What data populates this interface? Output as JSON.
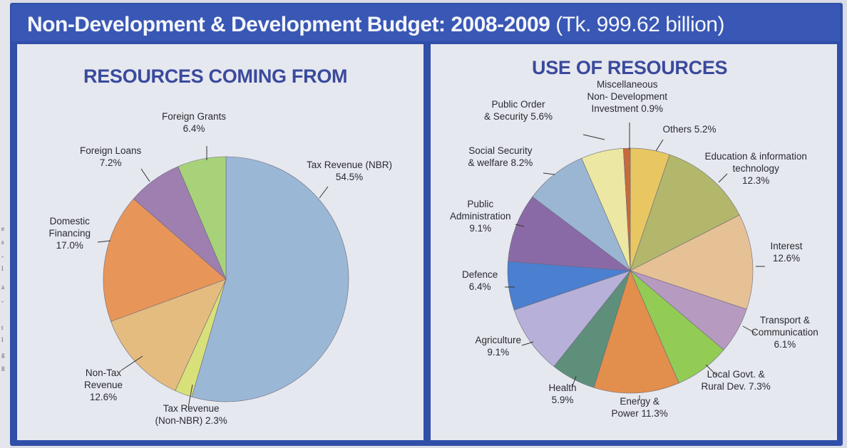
{
  "page": {
    "title_main": "Non-Development & Development Budget: 2008-2009",
    "title_sub": "(Tk. 999.62 billion)",
    "edge_fragments": [
      "e",
      "s",
      "-",
      "l",
      "a",
      "-",
      "t",
      "l",
      "g",
      "8"
    ]
  },
  "chart_data": [
    {
      "type": "pie",
      "title": "RESOURCES COMING FROM",
      "unit": "%",
      "start_angle_deg": 0,
      "direction": "clockwise",
      "slices": [
        {
          "label": "Tax Revenue (NBR)",
          "value": 54.5,
          "color": "#9bb7d6"
        },
        {
          "label": "Tax Revenue (Non-NBR)",
          "value": 2.3,
          "color": "#d8e07a"
        },
        {
          "label": "Non-Tax Revenue",
          "value": 12.6,
          "color": "#e5bc80"
        },
        {
          "label": "Domestic Financing",
          "value": 17.0,
          "color": "#e8955a"
        },
        {
          "label": "Foreign Loans",
          "value": 7.2,
          "color": "#9e7fb0"
        },
        {
          "label": "Foreign Grants",
          "value": 6.4,
          "color": "#a7d27a"
        }
      ],
      "labels": [
        {
          "lines": [
            "Tax Revenue (NBR)",
            "54.5%"
          ]
        },
        {
          "lines": [
            "Tax Revenue",
            "(Non-NBR) 2.3%"
          ]
        },
        {
          "lines": [
            "Non-Tax",
            "Revenue",
            "12.6%"
          ]
        },
        {
          "lines": [
            "Domestic",
            "Financing",
            "17.0%"
          ]
        },
        {
          "lines": [
            "Foreign Loans",
            "7.2%"
          ]
        },
        {
          "lines": [
            "Foreign Grants",
            "6.4%"
          ]
        }
      ]
    },
    {
      "type": "pie",
      "title": "USE OF RESOURCES",
      "unit": "%",
      "start_angle_deg": 0,
      "direction": "clockwise",
      "slices": [
        {
          "label": "Others",
          "value": 5.2,
          "color": "#e8c763"
        },
        {
          "label": "Education & information technology",
          "value": 12.3,
          "color": "#b3b76c"
        },
        {
          "label": "Interest",
          "value": 12.6,
          "color": "#e6c196"
        },
        {
          "label": "Transport & Communication",
          "value": 6.1,
          "color": "#b69ac0"
        },
        {
          "label": "Local Govt. & Rural Dev.",
          "value": 7.3,
          "color": "#93cc55"
        },
        {
          "label": "Energy & Power",
          "value": 11.3,
          "color": "#e28e4c"
        },
        {
          "label": "Health",
          "value": 5.9,
          "color": "#5e8f7a"
        },
        {
          "label": "Agriculture",
          "value": 9.1,
          "color": "#b7b0d8"
        },
        {
          "label": "Defence",
          "value": 6.4,
          "color": "#4b7fd0"
        },
        {
          "label": "Public Administration",
          "value": 9.1,
          "color": "#8a6aa6"
        },
        {
          "label": "Social Security & welfare",
          "value": 8.2,
          "color": "#9bb6d3"
        },
        {
          "label": "Public Order & Security",
          "value": 5.6,
          "color": "#ece7a2"
        },
        {
          "label": "Miscellaneous Non- Development Investment",
          "value": 0.9,
          "color": "#c76a3c"
        }
      ],
      "labels": [
        {
          "lines": [
            "Others 5.2%"
          ]
        },
        {
          "lines": [
            "Education & information",
            "technology",
            "12.3%"
          ]
        },
        {
          "lines": [
            "Interest",
            "12.6%"
          ]
        },
        {
          "lines": [
            "Transport &",
            "Communication",
            "6.1%"
          ]
        },
        {
          "lines": [
            "Local Govt. &",
            "Rural Dev. 7.3%"
          ]
        },
        {
          "lines": [
            "Energy &",
            "Power 11.3%"
          ]
        },
        {
          "lines": [
            "Health",
            "5.9%"
          ]
        },
        {
          "lines": [
            "Agriculture",
            "9.1%"
          ]
        },
        {
          "lines": [
            "Defence",
            "6.4%"
          ]
        },
        {
          "lines": [
            "Public",
            "Administration",
            "9.1%"
          ]
        },
        {
          "lines": [
            "Social Security",
            "& welfare 8.2%"
          ]
        },
        {
          "lines": [
            "Public Order",
            "& Security 5.6%"
          ]
        },
        {
          "lines": [
            "Miscellaneous",
            "Non- Development",
            "Investment 0.9%"
          ]
        }
      ]
    }
  ]
}
